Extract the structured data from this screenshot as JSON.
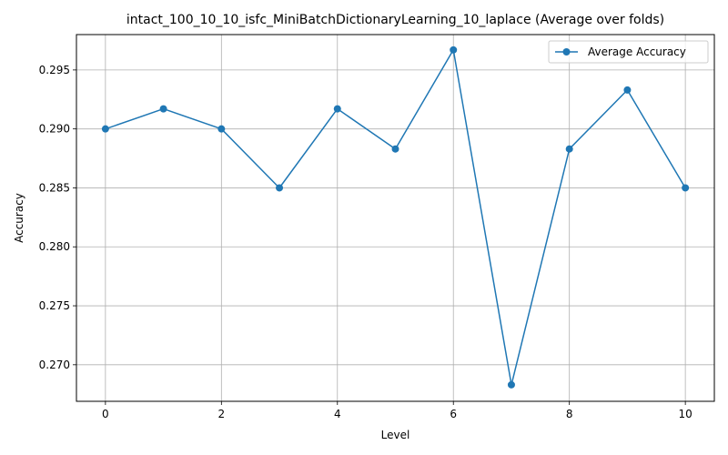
{
  "chart_data": {
    "type": "line",
    "title": "intact_100_10_10_isfc_MiniBatchDictionaryLearning_10_laplace (Average over folds)",
    "xlabel": "Level",
    "ylabel": "Accuracy",
    "xlim": [
      -0.5,
      10.5
    ],
    "ylim": [
      0.2669,
      0.298
    ],
    "x_ticks": [
      0,
      2,
      4,
      6,
      8,
      10
    ],
    "x_tick_labels": [
      "0",
      "2",
      "4",
      "6",
      "8",
      "10"
    ],
    "y_ticks": [
      0.27,
      0.275,
      0.28,
      0.285,
      0.29,
      0.295
    ],
    "y_tick_labels": [
      "0.270",
      "0.275",
      "0.280",
      "0.285",
      "0.290",
      "0.295"
    ],
    "grid": true,
    "legend_position": "top-right",
    "series": [
      {
        "name": "Average Accuracy",
        "color": "#1f77b4",
        "marker": "circle",
        "x": [
          0,
          1,
          2,
          3,
          4,
          5,
          6,
          7,
          8,
          9,
          10
        ],
        "values": [
          0.29,
          0.2917,
          0.29,
          0.285,
          0.2917,
          0.2883,
          0.2967,
          0.2683,
          0.2883,
          0.2933,
          0.285
        ]
      }
    ]
  }
}
